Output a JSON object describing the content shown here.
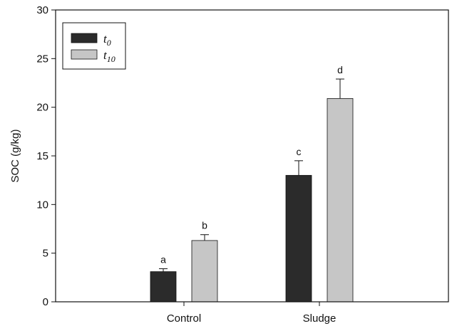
{
  "chart_data": {
    "type": "bar",
    "title": "",
    "xlabel": "",
    "ylabel": "SOC (g/kg)",
    "ylim": [
      0,
      30
    ],
    "yticks": [
      0,
      5,
      10,
      15,
      20,
      25,
      30
    ],
    "categories": [
      "Control",
      "Sludge"
    ],
    "series": [
      {
        "name": "t",
        "subscript": "0",
        "color": "#2b2b2b",
        "values": [
          3.1,
          13.0
        ],
        "errors": [
          0.3,
          1.5
        ],
        "labels": [
          "a",
          "c"
        ]
      },
      {
        "name": "t",
        "subscript": "10",
        "color": "#c6c6c6",
        "values": [
          6.3,
          20.9
        ],
        "errors": [
          0.6,
          2.0
        ],
        "labels": [
          "b",
          "d"
        ]
      }
    ],
    "legend_position": "top-left",
    "grid": false
  }
}
